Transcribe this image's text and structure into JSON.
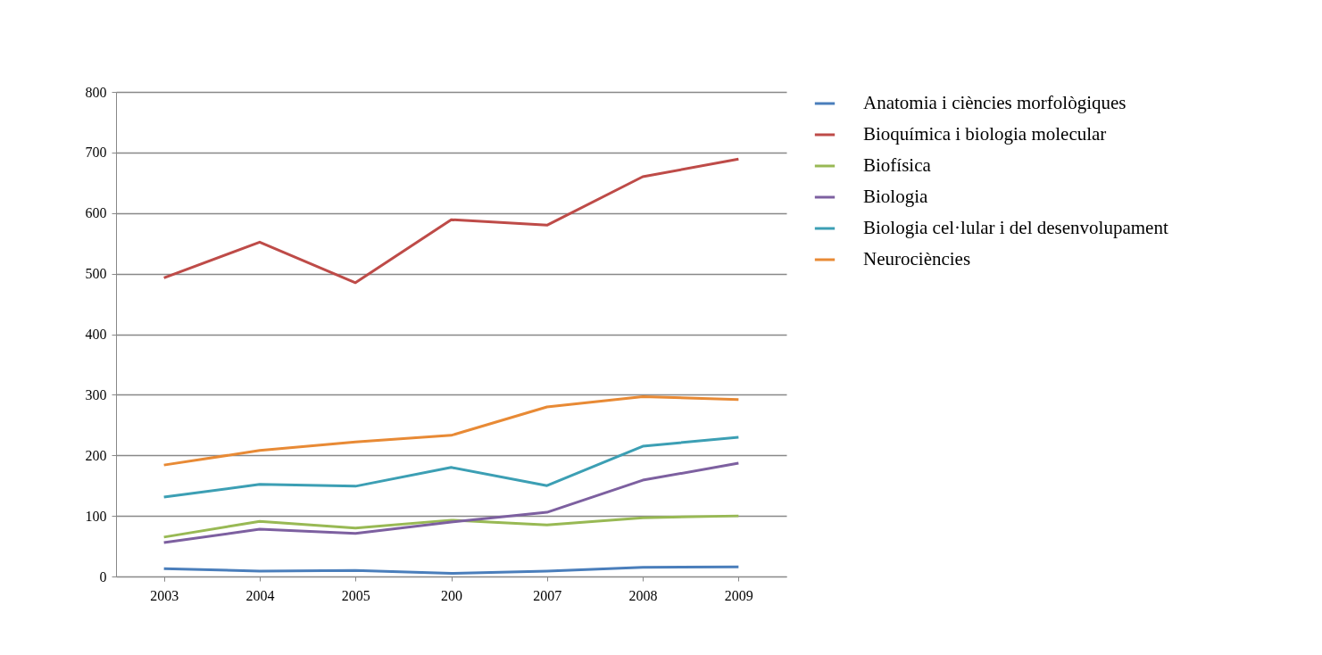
{
  "chart_data": {
    "type": "line",
    "categories": [
      "2003",
      "2004",
      "2005",
      "200",
      "2007",
      "2008",
      "2009"
    ],
    "series": [
      {
        "name": "Anatomia i ciències morfològiques",
        "color": "#4a7ebb",
        "values": [
          13,
          9,
          10,
          5,
          9,
          15,
          16
        ]
      },
      {
        "name": "Bioquímica i biologia molecular",
        "color": "#be4b48",
        "values": [
          493,
          552,
          485,
          589,
          580,
          660,
          689
        ]
      },
      {
        "name": "Biofísica",
        "color": "#98b954",
        "values": [
          65,
          91,
          80,
          93,
          85,
          97,
          100
        ]
      },
      {
        "name": "Biologia",
        "color": "#7d60a0",
        "values": [
          56,
          78,
          71,
          90,
          106,
          159,
          187
        ]
      },
      {
        "name": "Biologia cel·lular i del desenvolupament",
        "color": "#3c9fb4",
        "values": [
          131,
          152,
          149,
          180,
          150,
          215,
          230
        ]
      },
      {
        "name": "Neurociències",
        "color": "#e88a35",
        "values": [
          184,
          208,
          222,
          233,
          280,
          297,
          292
        ]
      }
    ],
    "ylim": [
      0,
      800
    ],
    "yticks": [
      0,
      100,
      200,
      300,
      400,
      500,
      600,
      700,
      800
    ],
    "grid": "y",
    "legend": "right",
    "marker": "none",
    "line_style": "solid"
  }
}
